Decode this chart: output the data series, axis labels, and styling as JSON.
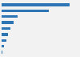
{
  "values": [
    530,
    370,
    125,
    95,
    68,
    52,
    40,
    18,
    8
  ],
  "bar_color": "#2e75b6",
  "background_color": "#f2f2f2",
  "grid_color": "#cccccc",
  "xlim": [
    0,
    600
  ],
  "bar_height": 0.45,
  "n_bars": 9
}
